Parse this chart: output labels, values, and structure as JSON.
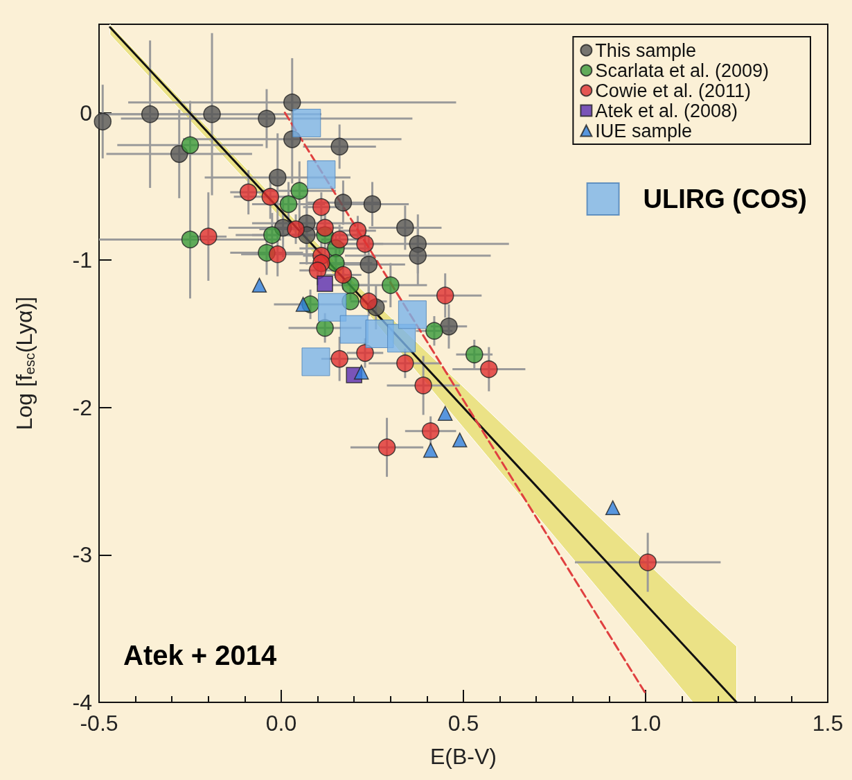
{
  "chart_data": {
    "type": "scatter",
    "xlabel": "E(B-V)",
    "ylabel": "Log [f$_{esc}$(Lyα)]",
    "xlim": [
      -0.5,
      1.5
    ],
    "ylim": [
      -4,
      0.6
    ],
    "xticks": [
      -0.5,
      {
        "value": 0,
        "label": "0.0"
      },
      0.5,
      {
        "value": 1,
        "label": "1.0"
      },
      1.5
    ],
    "yticks": [
      0,
      -1,
      -2,
      -3,
      -4
    ],
    "grid": false,
    "legend": "top right",
    "annotations": [
      "Atek + 2014"
    ],
    "series": [
      {
        "name": "This sample",
        "color": "#555555",
        "marker": "circle",
        "x": [
          -0.49,
          -0.36,
          -0.19,
          -0.04,
          0.03,
          0.03,
          0.16,
          -0.28,
          -0.01,
          0.17,
          0.25,
          0.005,
          0.07,
          0.07,
          0.34,
          0.375,
          0.375,
          0.24,
          0.26,
          0.46
        ],
        "values": [
          -0.06,
          -0.01,
          -0.01,
          -0.04,
          0.07,
          -0.18,
          -0.23,
          -0.28,
          -0.44,
          -0.61,
          -0.62,
          -0.78,
          -0.75,
          -0.83,
          -0.78,
          -0.89,
          -0.97,
          -1.03,
          -1.32,
          -1.45
        ],
        "errors": [
          0.25,
          0.5,
          0.55,
          0.2,
          0.3,
          0.3,
          0.15,
          0.3,
          0.3,
          0.15,
          0.15,
          0.2,
          0.2,
          0.2,
          0.15,
          0.2,
          0.2,
          0.2,
          0.15,
          0.15
        ],
        "xerrors": [
          null,
          0.14,
          0.3,
          0.4,
          0.45,
          0.3,
          0.1,
          0.2,
          0.2,
          0.1,
          0.1,
          0.15,
          0.15,
          0.15,
          0.1,
          0.25,
          0.2,
          0.1,
          null,
          0.05
        ]
      },
      {
        "name": "Scarlata et al. (2009)",
        "color": "#3a9a3a",
        "marker": "circle",
        "x": [
          -0.25,
          -0.25,
          0.05,
          0.02,
          -0.025,
          -0.04,
          0.12,
          0.15,
          0.15,
          0.19,
          0.19,
          0.08,
          0.12,
          0.3,
          0.42,
          0.53
        ],
        "values": [
          -0.22,
          -0.86,
          -0.53,
          -0.62,
          -0.83,
          -0.95,
          -0.83,
          -0.92,
          -1.02,
          -1.17,
          -1.28,
          -1.3,
          -1.46,
          -1.17,
          -1.48,
          -1.64
        ],
        "errors": [
          0.3,
          0.4,
          0.2,
          0.15,
          0.15,
          0.15,
          0.15,
          0.1,
          0.1,
          0.1,
          null,
          0.1,
          0.1,
          0.15,
          0.1,
          0.1
        ],
        "xerrors": [
          0.2,
          0.25,
          0.1,
          0.1,
          0.1,
          0.1,
          0.1,
          0.1,
          0.1,
          0.05,
          null,
          0.1,
          0.1,
          0.1,
          0.05,
          0.05
        ]
      },
      {
        "name": "Cowie et al. (2011)",
        "color": "#e03030",
        "marker": "circle",
        "x": [
          -0.2,
          -0.09,
          -0.03,
          0.11,
          -0.01,
          0.04,
          0.12,
          0.16,
          0.21,
          0.23,
          0.11,
          0.11,
          0.1,
          0.17,
          0.24,
          0.45,
          0.16,
          0.23,
          0.34,
          0.57,
          0.39,
          0.41,
          0.29,
          1.006
        ],
        "values": [
          -0.84,
          -0.54,
          -0.57,
          -0.64,
          -0.96,
          -0.79,
          -0.78,
          -0.86,
          -0.8,
          -0.89,
          -0.97,
          -1.02,
          -1.07,
          -1.1,
          -1.28,
          -1.24,
          -1.67,
          -1.63,
          -1.7,
          -1.74,
          -1.85,
          -2.16,
          -2.27,
          -3.05
        ],
        "errors": [
          0.3,
          0.15,
          0.15,
          0.1,
          0.15,
          0.1,
          0.1,
          0.1,
          0.1,
          0.1,
          0.1,
          0.1,
          0.1,
          0.1,
          0.1,
          0.15,
          0.15,
          0.1,
          0.1,
          0.15,
          0.2,
          0.1,
          0.2,
          0.2
        ],
        "xerrors": [
          0.05,
          0.05,
          0.1,
          0.05,
          0.1,
          0.1,
          0.05,
          0.05,
          0.05,
          0.05,
          0.05,
          0.05,
          0.05,
          0.05,
          0.05,
          0.1,
          0.05,
          0.05,
          0.1,
          0.1,
          0.1,
          0.07,
          0.1,
          0.2
        ]
      },
      {
        "name": "Atek et al. (2008)",
        "color": "#5a2db0",
        "marker": "square",
        "x": [
          0.12,
          0.2
        ],
        "values": [
          -1.16,
          -1.78
        ]
      },
      {
        "name": "IUE sample",
        "color": "#2f7fe0",
        "marker": "triangle",
        "x": [
          -0.06,
          0.06,
          0.22,
          0.45,
          0.49,
          0.41,
          0.91
        ],
        "values": [
          -1.17,
          -1.3,
          -1.76,
          -2.04,
          -2.22,
          -2.29,
          -2.68
        ]
      },
      {
        "name": "ULIRG (COS)",
        "color": "#7ab4ea",
        "marker": "square",
        "x": [
          0.07,
          0.11,
          0.14,
          0.2,
          0.27,
          0.33,
          0.36,
          0.095
        ],
        "values": [
          -0.07,
          -0.42,
          -1.32,
          -1.47,
          -1.5,
          -1.53,
          -1.37,
          -1.69
        ]
      },
      {
        "type": "line",
        "color": "#111111",
        "marker": "none",
        "line_style": "solid",
        "x": [
          -0.47,
          0.2,
          1.13,
          1.25
        ],
        "values": [
          0.58,
          -1.2,
          -3.68,
          -4.0
        ],
        "lower": [
          0.53,
          -1.25,
          -4.0,
          -4.0
        ],
        "upper": [
          0.6,
          -1.15,
          -3.35,
          -3.62
        ]
      },
      {
        "type": "line",
        "color": "#e04040",
        "marker": "none",
        "line_style": "dashed",
        "x": [
          0.01,
          1.0
        ],
        "values": [
          0.0,
          -3.94
        ]
      }
    ]
  }
}
